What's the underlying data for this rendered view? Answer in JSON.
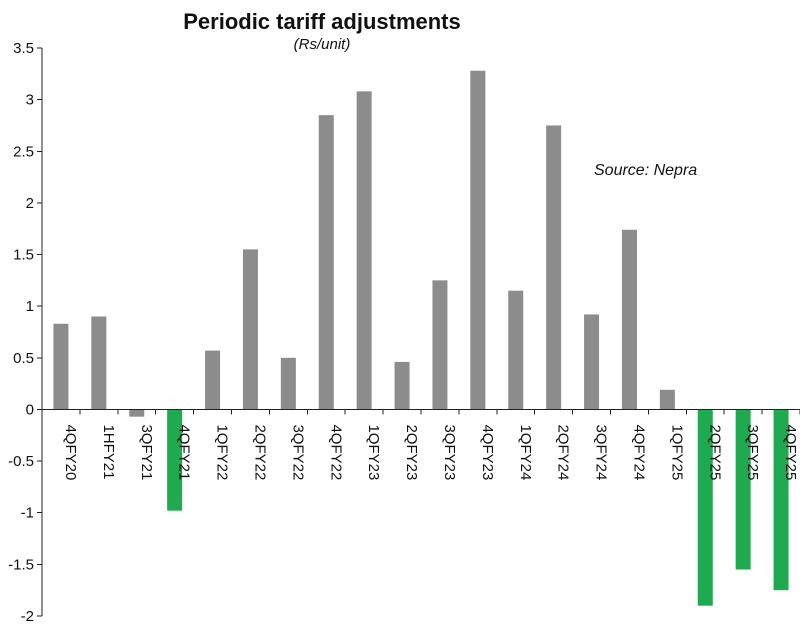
{
  "chart_data": {
    "type": "bar",
    "title": "Periodic tariff adjustments",
    "subtitle": "(Rs/unit)",
    "annotation": "Source: Nepra",
    "xlabel": "",
    "ylabel": "",
    "ylim": [
      -2,
      3.5
    ],
    "yticks": [
      "3.5",
      "3",
      "2.5",
      "2",
      "1.5",
      "1",
      "0.5",
      "0",
      "-0.5",
      "-1",
      "-1.5",
      "-2"
    ],
    "grid": false,
    "categories": [
      "4QFY20",
      "1HFY21",
      "3QFY21",
      "4QFY21",
      "1QFY22",
      "2QFY22",
      "3QFY22",
      "4QFY22",
      "1QFY23",
      "2QFY23",
      "3QFY23",
      "4QFY23",
      "1QFY24",
      "2QFY24",
      "3QFY24",
      "4QFY24",
      "1QFY25",
      "2QFY25",
      "3QFY25",
      "4QFY25"
    ],
    "values": [
      0.83,
      0.9,
      -0.07,
      -0.98,
      0.57,
      1.55,
      0.5,
      2.85,
      3.08,
      0.46,
      1.25,
      3.28,
      1.15,
      2.75,
      0.92,
      1.74,
      0.19,
      -1.9,
      -1.55,
      -1.75
    ],
    "colors": [
      "#8c8c8c",
      "#8c8c8c",
      "#8c8c8c",
      "#1faa4f",
      "#8c8c8c",
      "#8c8c8c",
      "#8c8c8c",
      "#8c8c8c",
      "#8c8c8c",
      "#8c8c8c",
      "#8c8c8c",
      "#8c8c8c",
      "#8c8c8c",
      "#8c8c8c",
      "#8c8c8c",
      "#8c8c8c",
      "#8c8c8c",
      "#1faa4f",
      "#1faa4f",
      "#1faa4f"
    ]
  }
}
